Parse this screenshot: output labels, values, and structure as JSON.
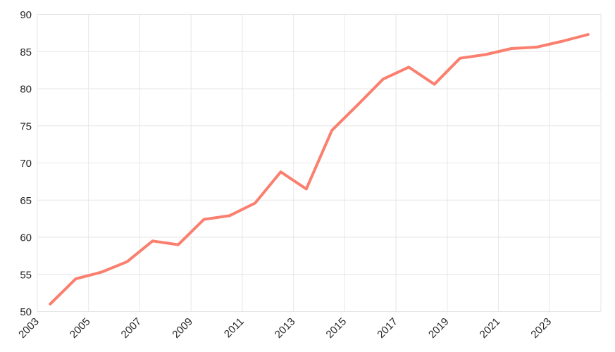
{
  "chart": {
    "background_color": "#ffffff",
    "line_color": "#fa7f6f",
    "grid_color": "#e6e6e6",
    "label_color": "#262626",
    "line_width": 4
  },
  "chart_data": {
    "type": "line",
    "title": "",
    "xlabel": "",
    "ylabel": "",
    "categories": [
      "2003",
      "2004",
      "2005",
      "2006",
      "2007",
      "2008",
      "2009",
      "2010",
      "2011",
      "2012",
      "2013",
      "2014",
      "2015",
      "2016",
      "2017",
      "2018",
      "2019",
      "2020",
      "2021",
      "2022",
      "2023",
      "2024"
    ],
    "series": [
      {
        "name": "series-1",
        "values": [
          51.0,
          54.4,
          55.3,
          56.7,
          59.5,
          59.0,
          62.4,
          62.9,
          64.6,
          68.8,
          66.5,
          74.4,
          77.8,
          81.3,
          82.9,
          80.6,
          84.1,
          84.6,
          85.4,
          85.6,
          86.4,
          87.3
        ]
      }
    ],
    "ylim": [
      50,
      90
    ],
    "y_ticks": [
      50,
      55,
      60,
      65,
      70,
      75,
      80,
      85,
      90
    ],
    "x_tick_labels": [
      "2003",
      "2005",
      "2007",
      "2009",
      "2011",
      "2013",
      "2015",
      "2017",
      "2019",
      "2021",
      "2023"
    ],
    "x_tick_step": 2,
    "x_tick_rotation": -45,
    "grid": "on",
    "legend": "none",
    "point_placement": "between-ticks"
  }
}
